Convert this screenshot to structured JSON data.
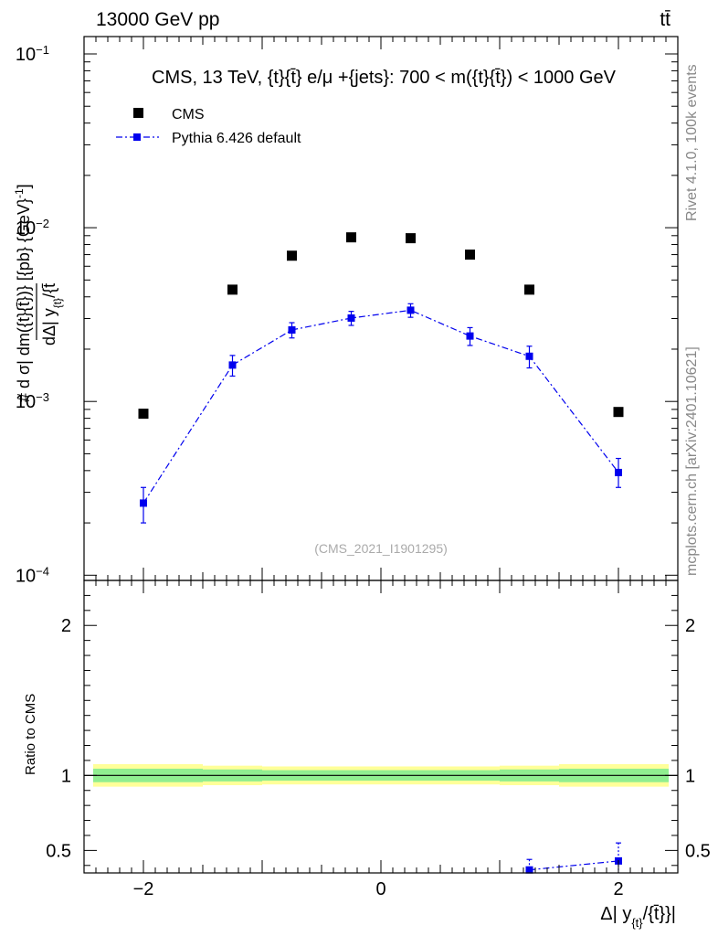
{
  "header": {
    "energy_label": "13000 GeV pp",
    "process_label": "tt̄"
  },
  "side_labels": {
    "rivet": "Rivet 4.1.0,  100k events",
    "source": "mcplots.cern.ch [arXiv:2401.10621]"
  },
  "colors": {
    "data": "#000000",
    "mc": "#0000ee",
    "band_inner": "#90ee90",
    "band_outer": "#ffff99"
  },
  "chart_data": [
    {
      "type": "scatter",
      "title": "CMS, 13 TeV, {t}{t̄} e/μ +{jets}: 700 < m({t}{t̄}) < 1000 GeV",
      "watermark": "(CMS_2021_I1901295)",
      "ylabel_numerator": "# d σ",
      "ylabel_line1": "| dm({t}{t̄})} [{pb} {GeV}",
      "ylabel_exp": "-1",
      "ylabel_close": "]",
      "ylabel_denominator": "dΔ| y",
      "ylabel_denominator_sub": "{t}",
      "ylabel_denominator_tail": "/{t̄",
      "yscale": "log",
      "ylim": [
        0.0001,
        0.1
      ],
      "xlim": [
        -2.5,
        2.5
      ],
      "y_tick_labels": [
        {
          "value": 0.1,
          "base": "10",
          "exp": "−1"
        },
        {
          "value": 0.01,
          "base": "10",
          "exp": "−2"
        },
        {
          "value": 0.001,
          "base": "10",
          "exp": "−3"
        },
        {
          "value": 0.0001,
          "base": "10",
          "exp": "−4"
        }
      ],
      "legend": [
        {
          "name": "CMS",
          "style": "square-marker"
        },
        {
          "name": "Pythia 6.426 default",
          "style": "dash-dot-line"
        }
      ],
      "series": [
        {
          "name": "CMS",
          "x": [
            -2.0,
            -1.25,
            -0.75,
            -0.25,
            0.25,
            0.75,
            1.25,
            2.0
          ],
          "values": [
            0.00085,
            0.0044,
            0.0069,
            0.0088,
            0.0087,
            0.007,
            0.0044,
            0.00087
          ]
        },
        {
          "name": "Pythia 6.426 default",
          "x": [
            -2.0,
            -1.25,
            -0.75,
            -0.25,
            0.25,
            0.75,
            1.25,
            2.0
          ],
          "values": [
            0.00026,
            0.00162,
            0.00258,
            0.00302,
            0.00335,
            0.00238,
            0.00182,
            0.00039
          ],
          "err_low": [
            6e-05,
            0.00022,
            0.00026,
            0.00028,
            0.0003,
            0.00028,
            0.00026,
            7e-05
          ],
          "err_high": [
            6e-05,
            0.00022,
            0.00026,
            0.00028,
            0.0003,
            0.00028,
            0.00026,
            8e-05
          ]
        }
      ]
    },
    {
      "type": "scatter",
      "ylabel": "Ratio to CMS",
      "xlabel_main": "Δ| y",
      "xlabel_sub": "{t}",
      "xlabel_tail": "/{t̄}}|",
      "xlim": [
        -2.5,
        2.5
      ],
      "ylim": [
        0.35,
        2.3
      ],
      "x_tick_labels": [
        {
          "value": -2,
          "label": "−2"
        },
        {
          "value": 0,
          "label": "0"
        },
        {
          "value": 2,
          "label": "2"
        }
      ],
      "y_tick_labels": [
        {
          "value": 0.5,
          "label": "0.5"
        },
        {
          "value": 1,
          "label": "1"
        },
        {
          "value": 2,
          "label": "2"
        }
      ],
      "uncertainty_bands": {
        "edges": [
          -2.5,
          -1.5,
          -1.0,
          -0.5,
          0.0,
          0.5,
          1.0,
          1.5,
          2.5
        ],
        "outer": [
          0.075,
          0.065,
          0.06,
          0.06,
          0.06,
          0.06,
          0.065,
          0.075
        ],
        "inner": [
          0.045,
          0.04,
          0.035,
          0.035,
          0.035,
          0.035,
          0.04,
          0.045
        ]
      },
      "series": [
        {
          "name": "Pythia 6.426 default",
          "x": [
            1.25,
            2.0
          ],
          "values": [
            0.37,
            0.43
          ],
          "err_low": [
            0.05,
            0.08
          ],
          "err_high": [
            0.07,
            0.12
          ]
        }
      ]
    }
  ]
}
